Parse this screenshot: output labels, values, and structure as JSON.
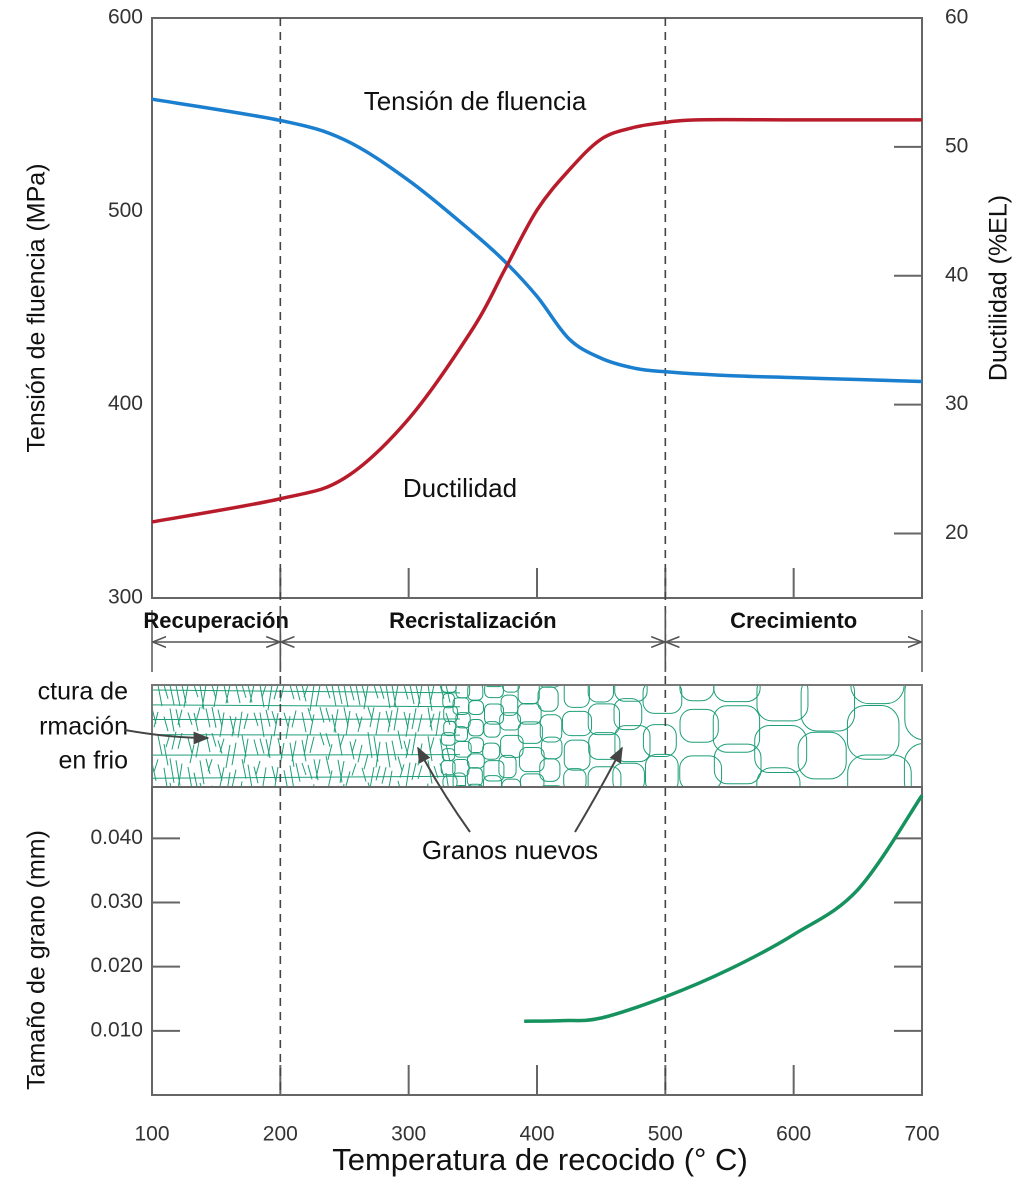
{
  "chart_data": [
    {
      "type": "line",
      "ylabel": "Tensión de fluencia (MPa)",
      "y2label": "Ductilidad (%EL)",
      "xlim": [
        100,
        700
      ],
      "ylim": [
        300,
        600
      ],
      "yticks": [
        300,
        400,
        500,
        600
      ],
      "y2lim": [
        15,
        60
      ],
      "y2ticks": [
        20,
        30,
        40,
        50,
        60
      ],
      "series": [
        {
          "name": "Tensión de fluencia",
          "color": "#1b7fcf",
          "x": [
            100,
            200,
            250,
            300,
            350,
            375,
            400,
            425,
            450,
            475,
            500,
            550,
            600,
            650,
            700
          ],
          "values": [
            558,
            547,
            537,
            516,
            489,
            474,
            456,
            434,
            424,
            419,
            417,
            415,
            414,
            413,
            412
          ]
        },
        {
          "name": "Ductilidad",
          "color": "#b81c2a",
          "axis": "y2",
          "x": [
            100,
            200,
            250,
            300,
            350,
            375,
            400,
            425,
            450,
            475,
            500,
            525,
            600,
            700
          ],
          "values": [
            20.9,
            22.7,
            24.3,
            28.9,
            35.9,
            40.5,
            45.1,
            48.2,
            50.6,
            51.5,
            51.9,
            52.1,
            52.1,
            52.1
          ]
        }
      ],
      "regions": [
        {
          "label": "Recuperación",
          "from": 100,
          "to": 200
        },
        {
          "label": "Recristalización",
          "from": 200,
          "to": 500
        },
        {
          "label": "Crecimiento",
          "from": 500,
          "to": 700
        }
      ],
      "vlines": [
        200,
        500
      ]
    },
    {
      "type": "line",
      "ylabel": "Tamaño de grano (mm)",
      "xlabel": "Temperatura de recocido (° C)",
      "xlim": [
        100,
        700
      ],
      "xticks": [
        100,
        200,
        300,
        400,
        500,
        600,
        700
      ],
      "ylim": [
        0,
        0.048
      ],
      "yticks": [
        {
          "value": 0.01,
          "label": "0.010"
        },
        {
          "value": 0.02,
          "label": "0.020"
        },
        {
          "value": 0.03,
          "label": "0.030"
        },
        {
          "value": 0.04,
          "label": "0.040"
        }
      ],
      "series": [
        {
          "color": "#16925e",
          "x": [
            390,
            420,
            450,
            500,
            550,
            600,
            650,
            700
          ],
          "values": [
            0.0115,
            0.0116,
            0.012,
            0.0153,
            0.0196,
            0.025,
            0.032,
            0.0467
          ]
        }
      ]
    }
  ],
  "annotations": {
    "cold_work": [
      "ctura de",
      "rmación",
      "en frio"
    ],
    "new_grains": "Granos nuevos"
  }
}
